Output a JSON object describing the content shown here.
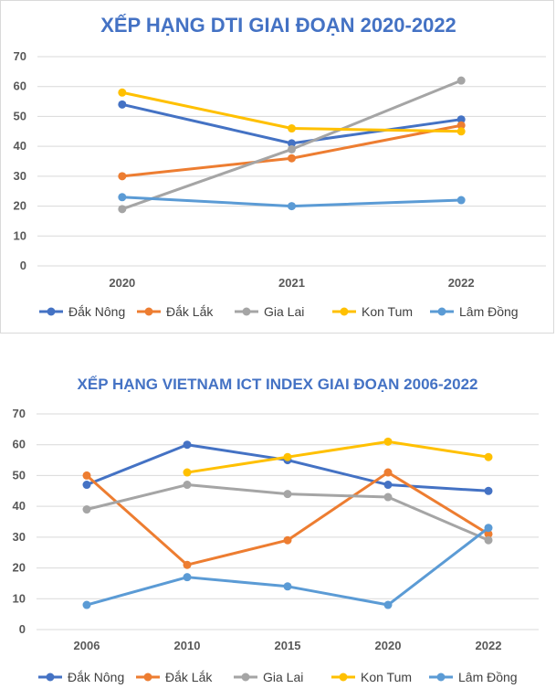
{
  "chart_data": [
    {
      "type": "line",
      "title": "XẾP HẠNG DTI GIAI ĐOẠN 2020-2022",
      "categories": [
        "2020",
        "2021",
        "2022"
      ],
      "yticks": [
        "0",
        "10",
        "20",
        "30",
        "40",
        "50",
        "60",
        "70"
      ],
      "ylim": [
        0,
        70
      ],
      "grid": true,
      "legend_position": "bottom",
      "series": [
        {
          "name": "Đắk Nông",
          "color": "#4472C4",
          "values": [
            54,
            41,
            49
          ]
        },
        {
          "name": "Đắk Lắk",
          "color": "#ED7D31",
          "values": [
            30,
            36,
            47
          ]
        },
        {
          "name": "Gia Lai",
          "color": "#A5A5A5",
          "values": [
            19,
            39,
            62
          ]
        },
        {
          "name": "Kon Tum",
          "color": "#FFC000",
          "values": [
            58,
            46,
            45
          ]
        },
        {
          "name": "Lâm Đồng",
          "color": "#5B9BD5",
          "values": [
            23,
            20,
            22
          ]
        }
      ]
    },
    {
      "type": "line",
      "title": "XẾP HẠNG VIETNAM ICT INDEX GIAI ĐOẠN 2006-2022",
      "categories": [
        "2006",
        "2010",
        "2015",
        "2020",
        "2022"
      ],
      "yticks": [
        "0",
        "10",
        "20",
        "30",
        "40",
        "50",
        "60",
        "70"
      ],
      "ylim": [
        0,
        70
      ],
      "grid": true,
      "legend_position": "bottom",
      "series": [
        {
          "name": "Đắk Nông",
          "color": "#4472C4",
          "values": [
            47,
            60,
            55,
            47,
            45
          ]
        },
        {
          "name": "Đắk Lắk",
          "color": "#ED7D31",
          "values": [
            50,
            21,
            29,
            51,
            31
          ]
        },
        {
          "name": "Gia Lai",
          "color": "#A5A5A5",
          "values": [
            39,
            47,
            44,
            43,
            29
          ]
        },
        {
          "name": "Kon Tum",
          "color": "#FFC000",
          "values": [
            null,
            51,
            56,
            61,
            56
          ]
        },
        {
          "name": "Lâm Đồng",
          "color": "#5B9BD5",
          "values": [
            8,
            17,
            14,
            8,
            33
          ]
        }
      ]
    }
  ]
}
